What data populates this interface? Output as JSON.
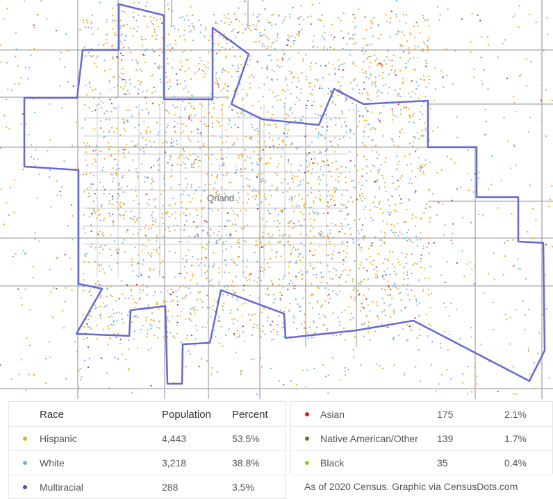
{
  "map": {
    "place_label": "Orland"
  },
  "legend": {
    "headers": {
      "race": "Race",
      "population": "Population",
      "percent": "Percent"
    },
    "left_rows": [
      {
        "race": "Hispanic",
        "population": "4,443",
        "percent": "53.5%",
        "color": "#f4a81d"
      },
      {
        "race": "White",
        "population": "3,218",
        "percent": "38.8%",
        "color": "#6fb4f0"
      },
      {
        "race": "Multiracial",
        "population": "288",
        "percent": "3.5%",
        "color": "#7b3fa6"
      }
    ],
    "right_rows": [
      {
        "race": "Asian",
        "population": "175",
        "percent": "2.1%",
        "color": "#e01e1e"
      },
      {
        "race": "Native American/Other",
        "population": "139",
        "percent": "1.7%",
        "color": "#8b5a2b"
      },
      {
        "race": "Black",
        "population": "35",
        "percent": "0.4%",
        "color": "#8fd11a"
      }
    ]
  },
  "footer": "As of 2020 Census. Graphic via CensusDots.com",
  "colors": {
    "boundary": "#6468d4",
    "road": "#9a9a9a",
    "background": "#ffffff"
  }
}
